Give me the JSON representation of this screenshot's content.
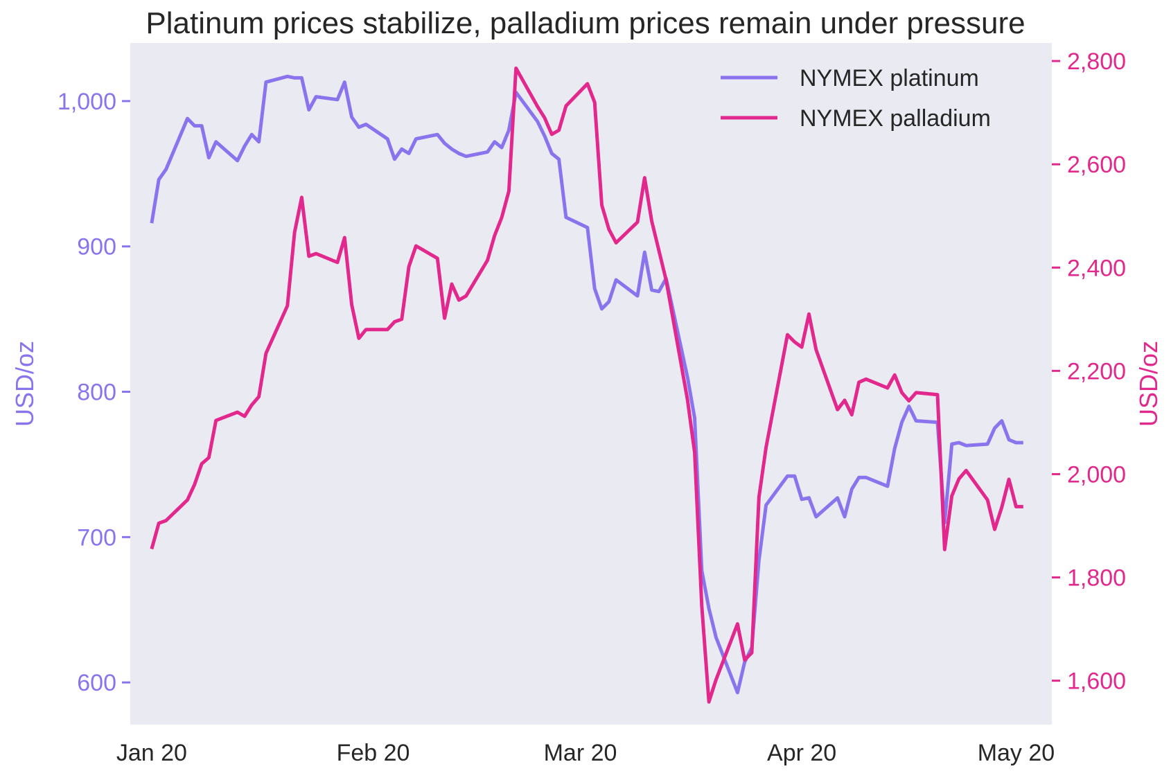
{
  "chart_data": {
    "type": "line",
    "title": "Platinum prices stabilize, palladium prices remain under pressure",
    "y_left_label": "USD/oz",
    "y_right_label": "USD/oz",
    "x_ticks": [
      "Jan 20",
      "Feb 20",
      "Mar 20",
      "Apr 20",
      "May 20"
    ],
    "y_left_ticks": [
      "600",
      "700",
      "800",
      "900",
      "1,000"
    ],
    "y_right_ticks": [
      "1,600",
      "1,800",
      "2,000",
      "2,200",
      "2,400",
      "2,600",
      "2,800"
    ],
    "y_left_ticks_values": [
      600,
      700,
      800,
      900,
      1000
    ],
    "y_right_ticks_values": [
      1600,
      1800,
      2000,
      2200,
      2400,
      2600,
      2800
    ],
    "y_left_range": [
      571,
      1040
    ],
    "y_right_range": [
      1515,
      2835
    ],
    "x_range": [
      "2019-12-29",
      "2020-05-06"
    ],
    "x_tick_dates": [
      "2020-01-01",
      "2020-02-01",
      "2020-03-01",
      "2020-04-01",
      "2020-05-01"
    ],
    "legend_position": "top-right",
    "grid": false,
    "colors": {
      "platinum": "#8a74ee",
      "palladium": "#e2288d",
      "plot_background": "#eaeaf2"
    },
    "series": [
      {
        "name": "NYMEX platinum",
        "axis": "left",
        "points": [
          [
            "2020-01-01",
            916
          ],
          [
            "2020-01-02",
            946
          ],
          [
            "2020-01-03",
            953
          ],
          [
            "2020-01-06",
            988
          ],
          [
            "2020-01-07",
            983
          ],
          [
            "2020-01-08",
            983
          ],
          [
            "2020-01-09",
            961
          ],
          [
            "2020-01-10",
            972
          ],
          [
            "2020-01-13",
            959
          ],
          [
            "2020-01-14",
            969
          ],
          [
            "2020-01-15",
            977
          ],
          [
            "2020-01-16",
            972
          ],
          [
            "2020-01-17",
            1013
          ],
          [
            "2020-01-20",
            1017
          ],
          [
            "2020-01-21",
            1016
          ],
          [
            "2020-01-22",
            1016
          ],
          [
            "2020-01-23",
            994
          ],
          [
            "2020-01-24",
            1003
          ],
          [
            "2020-01-27",
            1001
          ],
          [
            "2020-01-28",
            1013
          ],
          [
            "2020-01-29",
            989
          ],
          [
            "2020-01-30",
            982
          ],
          [
            "2020-01-31",
            984
          ],
          [
            "2020-02-03",
            974
          ],
          [
            "2020-02-04",
            960
          ],
          [
            "2020-02-05",
            967
          ],
          [
            "2020-02-06",
            964
          ],
          [
            "2020-02-07",
            974
          ],
          [
            "2020-02-10",
            977
          ],
          [
            "2020-02-11",
            971
          ],
          [
            "2020-02-12",
            967
          ],
          [
            "2020-02-13",
            964
          ],
          [
            "2020-02-14",
            962
          ],
          [
            "2020-02-17",
            965
          ],
          [
            "2020-02-18",
            972
          ],
          [
            "2020-02-19",
            968
          ],
          [
            "2020-02-20",
            980
          ],
          [
            "2020-02-21",
            1006
          ],
          [
            "2020-02-24",
            986
          ],
          [
            "2020-02-25",
            976
          ],
          [
            "2020-02-26",
            964
          ],
          [
            "2020-02-27",
            960
          ],
          [
            "2020-02-28",
            920
          ],
          [
            "2020-03-02",
            913
          ],
          [
            "2020-03-03",
            871
          ],
          [
            "2020-03-04",
            857
          ],
          [
            "2020-03-05",
            862
          ],
          [
            "2020-03-06",
            877
          ],
          [
            "2020-03-09",
            866
          ],
          [
            "2020-03-10",
            896
          ],
          [
            "2020-03-11",
            870
          ],
          [
            "2020-03-12",
            869
          ],
          [
            "2020-03-13",
            878
          ],
          [
            "2020-03-16",
            810
          ],
          [
            "2020-03-17",
            782
          ],
          [
            "2020-03-18",
            677
          ],
          [
            "2020-03-19",
            651
          ],
          [
            "2020-03-20",
            631
          ],
          [
            "2020-03-23",
            593
          ],
          [
            "2020-03-24",
            614
          ],
          [
            "2020-03-25",
            624
          ],
          [
            "2020-03-26",
            684
          ],
          [
            "2020-03-27",
            722
          ],
          [
            "2020-03-30",
            742
          ],
          [
            "2020-03-31",
            742
          ],
          [
            "2020-04-01",
            726
          ],
          [
            "2020-04-02",
            727
          ],
          [
            "2020-04-03",
            714
          ],
          [
            "2020-04-06",
            727
          ],
          [
            "2020-04-07",
            714
          ],
          [
            "2020-04-08",
            733
          ],
          [
            "2020-04-09",
            741
          ],
          [
            "2020-04-10",
            741
          ],
          [
            "2020-04-13",
            735
          ],
          [
            "2020-04-14",
            761
          ],
          [
            "2020-04-15",
            779
          ],
          [
            "2020-04-16",
            790
          ],
          [
            "2020-04-17",
            780
          ],
          [
            "2020-04-20",
            779
          ],
          [
            "2020-04-21",
            710
          ],
          [
            "2020-04-22",
            764
          ],
          [
            "2020-04-23",
            765
          ],
          [
            "2020-04-24",
            763
          ],
          [
            "2020-04-27",
            764
          ],
          [
            "2020-04-28",
            775
          ],
          [
            "2020-04-29",
            780
          ],
          [
            "2020-04-30",
            767
          ],
          [
            "2020-05-01",
            765
          ],
          [
            "2020-05-02",
            765
          ]
        ]
      },
      {
        "name": "NYMEX palladium",
        "axis": "right",
        "points": [
          [
            "2020-01-01",
            1855
          ],
          [
            "2020-01-02",
            1905
          ],
          [
            "2020-01-03",
            1910
          ],
          [
            "2020-01-06",
            1950
          ],
          [
            "2020-01-07",
            1980
          ],
          [
            "2020-01-08",
            2020
          ],
          [
            "2020-01-09",
            2032
          ],
          [
            "2020-01-10",
            2104
          ],
          [
            "2020-01-13",
            2120
          ],
          [
            "2020-01-14",
            2112
          ],
          [
            "2020-01-15",
            2134
          ],
          [
            "2020-01-16",
            2150
          ],
          [
            "2020-01-17",
            2234
          ],
          [
            "2020-01-20",
            2326
          ],
          [
            "2020-01-21",
            2468
          ],
          [
            "2020-01-22",
            2536
          ],
          [
            "2020-01-23",
            2422
          ],
          [
            "2020-01-24",
            2427
          ],
          [
            "2020-01-27",
            2410
          ],
          [
            "2020-01-28",
            2458
          ],
          [
            "2020-01-29",
            2328
          ],
          [
            "2020-01-30",
            2263
          ],
          [
            "2020-01-31",
            2280
          ],
          [
            "2020-02-03",
            2280
          ],
          [
            "2020-02-04",
            2295
          ],
          [
            "2020-02-05",
            2300
          ],
          [
            "2020-02-06",
            2402
          ],
          [
            "2020-02-07",
            2442
          ],
          [
            "2020-02-10",
            2418
          ],
          [
            "2020-02-11",
            2302
          ],
          [
            "2020-02-12",
            2368
          ],
          [
            "2020-02-13",
            2337
          ],
          [
            "2020-02-14",
            2345
          ],
          [
            "2020-02-17",
            2414
          ],
          [
            "2020-02-18",
            2462
          ],
          [
            "2020-02-19",
            2497
          ],
          [
            "2020-02-20",
            2548
          ],
          [
            "2020-02-21",
            2786
          ],
          [
            "2020-02-24",
            2712
          ],
          [
            "2020-02-25",
            2690
          ],
          [
            "2020-02-26",
            2658
          ],
          [
            "2020-02-27",
            2666
          ],
          [
            "2020-02-28",
            2713
          ],
          [
            "2020-03-02",
            2756
          ],
          [
            "2020-03-03",
            2720
          ],
          [
            "2020-03-04",
            2521
          ],
          [
            "2020-03-05",
            2474
          ],
          [
            "2020-03-06",
            2448
          ],
          [
            "2020-03-09",
            2488
          ],
          [
            "2020-03-10",
            2574
          ],
          [
            "2020-03-11",
            2490
          ],
          [
            "2020-03-13",
            2376
          ],
          [
            "2020-03-16",
            2144
          ],
          [
            "2020-03-17",
            2042
          ],
          [
            "2020-03-18",
            1745
          ],
          [
            "2020-03-19",
            1559
          ],
          [
            "2020-03-20",
            1602
          ],
          [
            "2020-03-23",
            1710
          ],
          [
            "2020-03-24",
            1640
          ],
          [
            "2020-03-25",
            1654
          ],
          [
            "2020-03-26",
            1955
          ],
          [
            "2020-03-27",
            2052
          ],
          [
            "2020-03-30",
            2270
          ],
          [
            "2020-03-31",
            2256
          ],
          [
            "2020-04-01",
            2246
          ],
          [
            "2020-04-02",
            2310
          ],
          [
            "2020-04-03",
            2241
          ],
          [
            "2020-04-06",
            2125
          ],
          [
            "2020-04-07",
            2143
          ],
          [
            "2020-04-08",
            2115
          ],
          [
            "2020-04-09",
            2178
          ],
          [
            "2020-04-10",
            2184
          ],
          [
            "2020-04-13",
            2167
          ],
          [
            "2020-04-14",
            2192
          ],
          [
            "2020-04-15",
            2158
          ],
          [
            "2020-04-16",
            2142
          ],
          [
            "2020-04-17",
            2158
          ],
          [
            "2020-04-20",
            2154
          ],
          [
            "2020-04-21",
            1854
          ],
          [
            "2020-04-22",
            1958
          ],
          [
            "2020-04-23",
            1991
          ],
          [
            "2020-04-24",
            2007
          ],
          [
            "2020-04-27",
            1950
          ],
          [
            "2020-04-28",
            1893
          ],
          [
            "2020-04-29",
            1936
          ],
          [
            "2020-04-30",
            1990
          ],
          [
            "2020-05-01",
            1937
          ],
          [
            "2020-05-02",
            1937
          ]
        ]
      }
    ]
  }
}
